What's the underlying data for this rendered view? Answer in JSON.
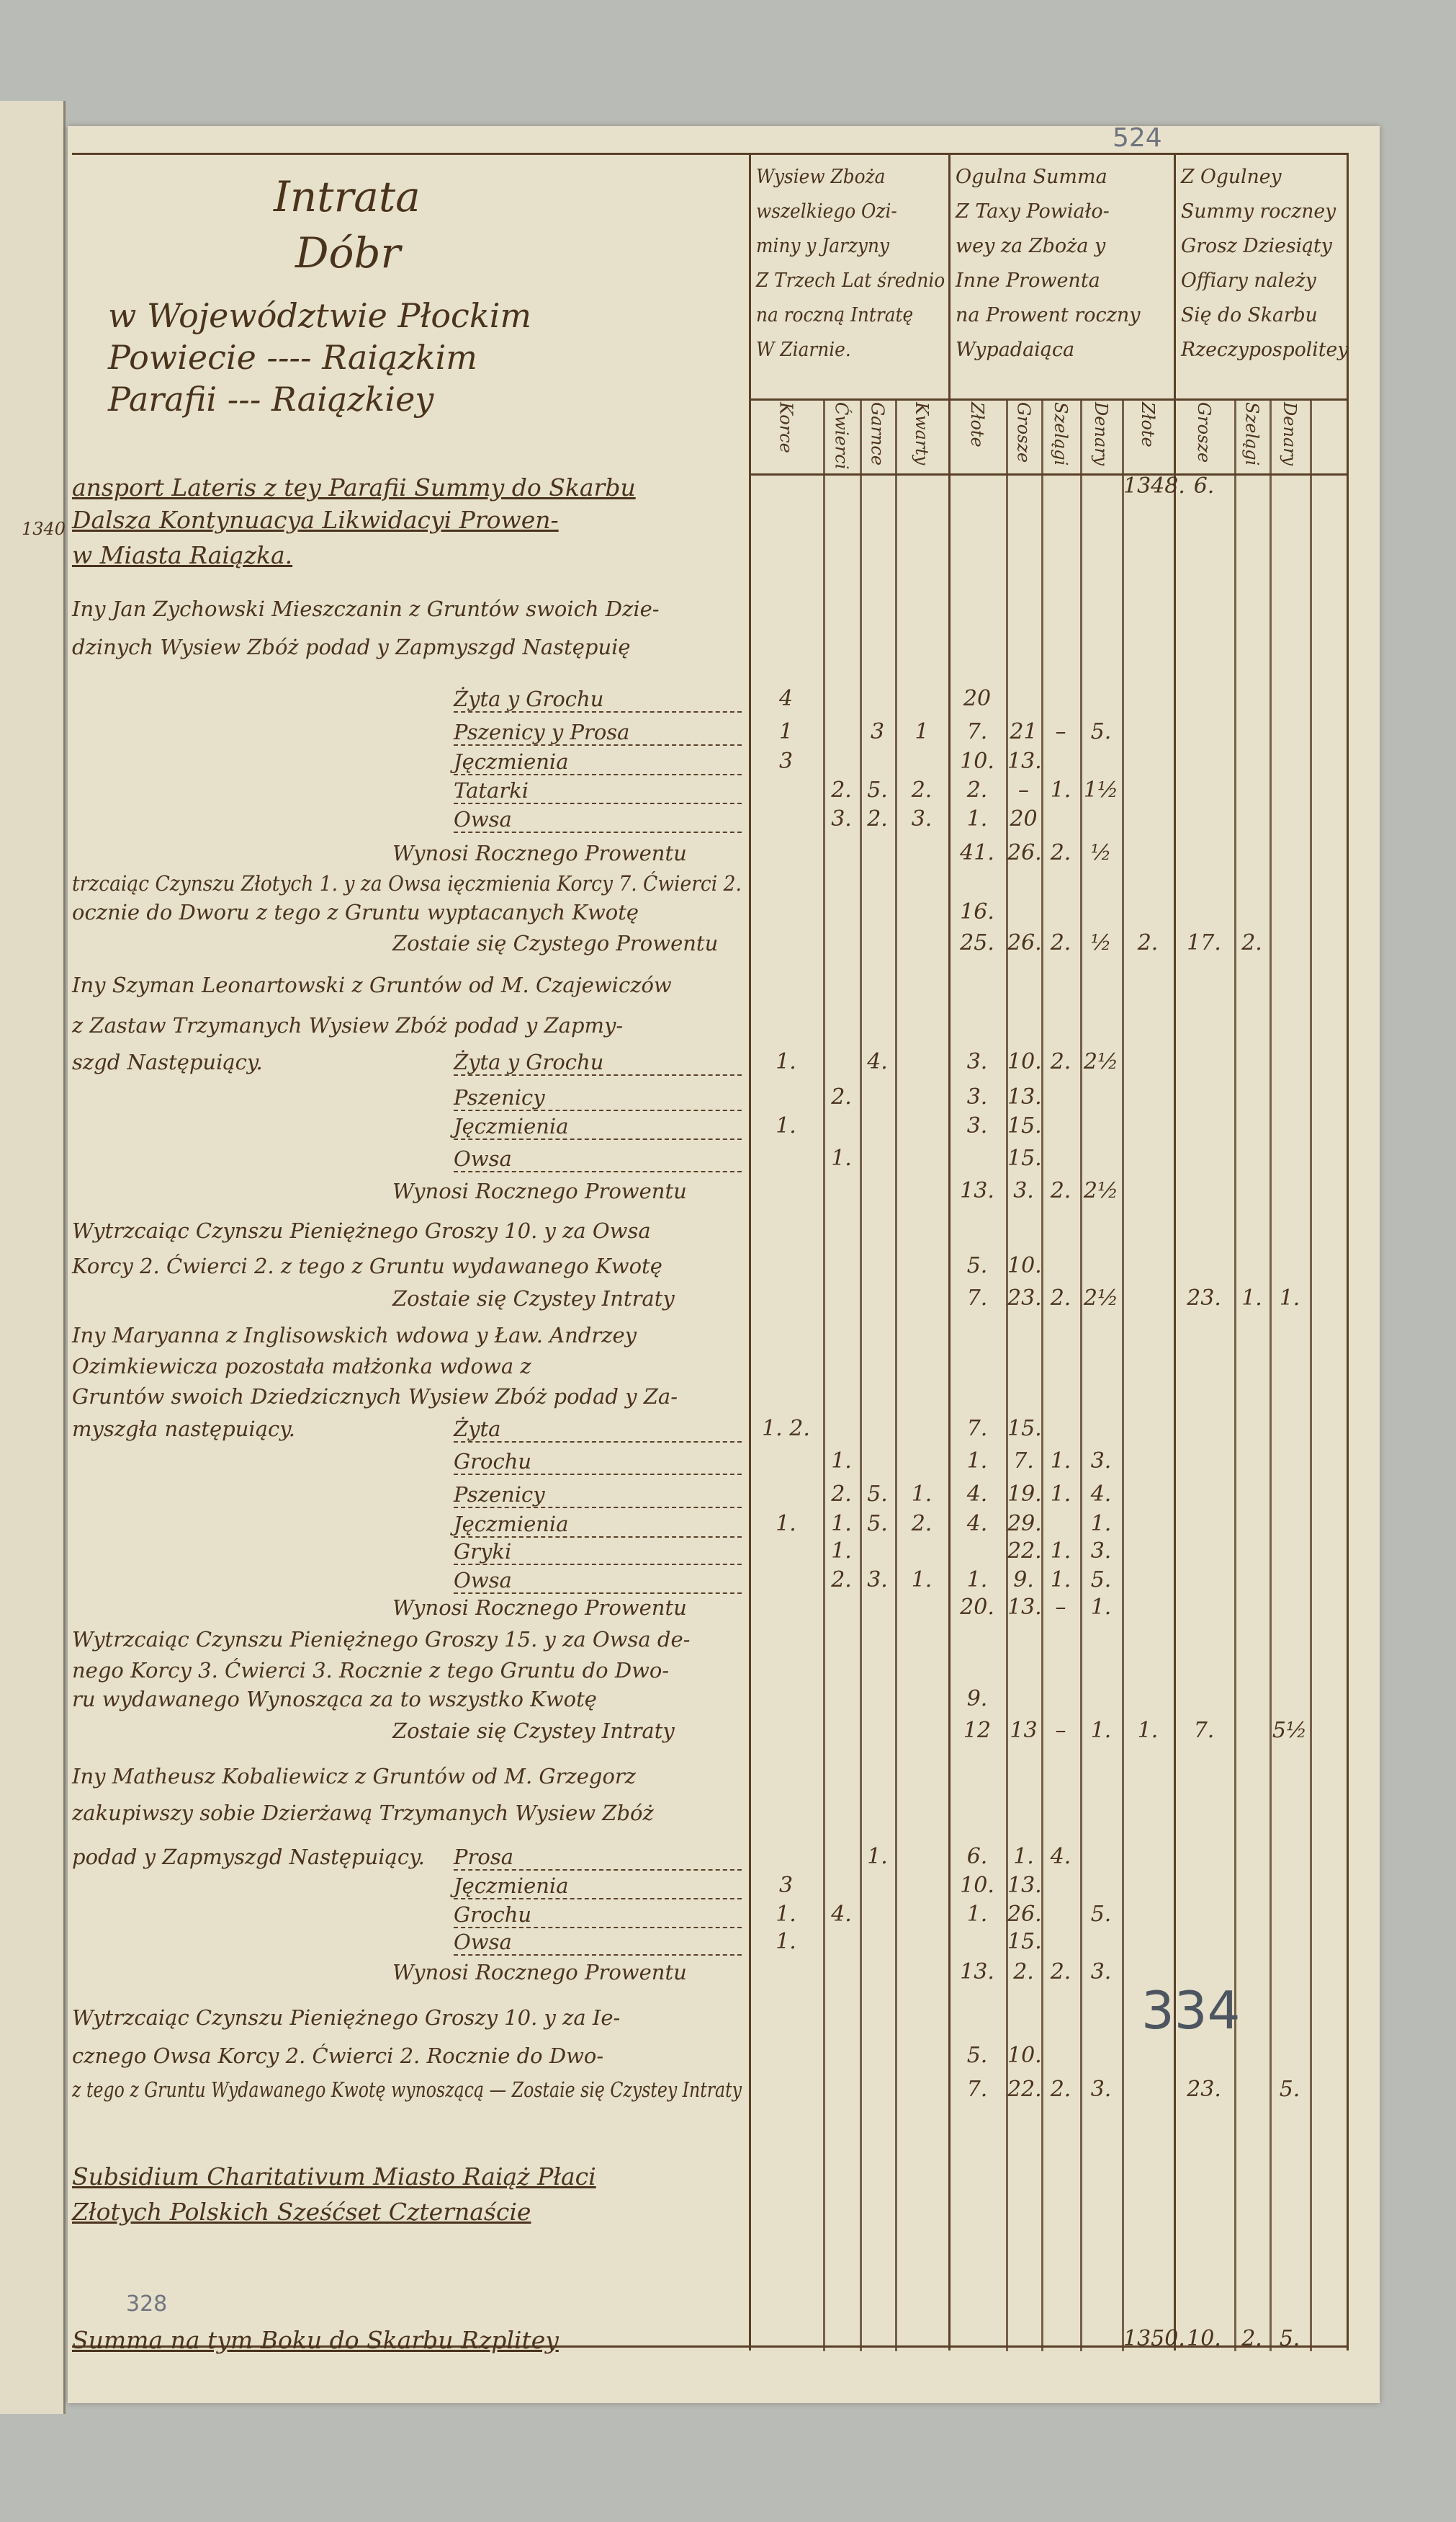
{
  "left_page_fragment": {
    "figure": "1340"
  },
  "pencil_notes": {
    "top_folio": "524",
    "stamp_folio": "334",
    "bottom_folio": "328"
  },
  "title": {
    "line1": "Intrata",
    "line2": "Dóbr",
    "line3": "w Województwie Płockim",
    "line4": "Powiecie ---- Raiązkim",
    "line5": "Parafii --- Raiązkiey"
  },
  "column_groups": [
    "Wysiew Zboża\nwszelkiego Ozi-\nminy y Jarzyny\nZ Trzech Lat średnio\nna roczną Intratę\nW Ziarnie.",
    "Ogulna Summa\nZ Taxy Powiało-\nwey za Zboża y\nInne Prowenta\nna Prowent roczny\nWypadaiąca",
    "Z Ogulney\nSummy roczney\nGrosz Dziesiąty\nOffiary należy\nSię do Skarbu\nRzeczypospolitey"
  ],
  "sub_columns": [
    "Korce",
    "Ćwierci",
    "Garnce",
    "Kwarty",
    "Złote",
    "Grosze",
    "Szelągi",
    "Denary",
    "Złote",
    "Grosze",
    "Szelągi",
    "Denary"
  ],
  "lines": [
    {
      "kind": "heading",
      "text": "ansport Lateris z tey Parafii Summy do Skarbu",
      "cells": [
        "",
        "",
        "",
        "",
        "",
        "",
        "",
        "",
        "1348.",
        "6.",
        "",
        ""
      ]
    },
    {
      "kind": "heading",
      "text": "Dalsza Kontynuacya Likwidacyi Prowen-",
      "cells": []
    },
    {
      "kind": "heading",
      "text": "w Miasta Raiązka.",
      "cells": []
    },
    {
      "kind": "text",
      "text": "Iny Jan Zychowski Mieszczanin z Gruntów swoich Dzie-",
      "cells": []
    },
    {
      "kind": "text",
      "text": "dzinych Wysiew Zbóż podad y Zapmyszgd Następuię",
      "cells": []
    },
    {
      "kind": "grain",
      "text": "Żyta y Grochu",
      "cells": [
        "4",
        "",
        "",
        "",
        "20",
        "",
        "",
        "",
        "",
        "",
        "",
        ""
      ]
    },
    {
      "kind": "grain",
      "text": "Pszenicy y Prosa",
      "cells": [
        "1",
        "",
        "3",
        "1",
        "7.",
        "21",
        "–",
        "5.",
        "",
        "",
        "",
        ""
      ]
    },
    {
      "kind": "grain",
      "text": "Jęczmienia",
      "cells": [
        "3",
        "",
        "",
        "",
        "10.",
        "13.",
        "",
        "",
        "",
        "",
        "",
        ""
      ]
    },
    {
      "kind": "grain",
      "text": "Tatarki",
      "cells": [
        "",
        "2.",
        "5.",
        "2.",
        "2.",
        "–",
        "1.",
        "1½",
        "",
        "",
        "",
        ""
      ]
    },
    {
      "kind": "grain",
      "text": "Owsa",
      "cells": [
        "",
        "3.",
        "2.",
        "3.",
        "1.",
        "20",
        "",
        "",
        "",
        "",
        "",
        ""
      ]
    },
    {
      "kind": "total",
      "text": "Wynosi Rocznego Prowentu",
      "cells": [
        "",
        "",
        "",
        "",
        "41.",
        "26.",
        "2.",
        "½",
        "",
        "",
        "",
        ""
      ]
    },
    {
      "kind": "text",
      "text": "trzcaiąc Czynszu Złotych 1. y za Owsa ięczmienia Korcy 7. Ćwierci 2.",
      "cells": []
    },
    {
      "kind": "text",
      "text": "ocznie do Dworu z tego z Gruntu wyptacanych Kwotę",
      "cells": [
        "",
        "",
        "",
        "",
        "16.",
        "",
        "",
        "",
        "",
        "",
        "",
        ""
      ]
    },
    {
      "kind": "total",
      "text": "Zostaie się Czystego Prowentu",
      "cells": [
        "",
        "",
        "",
        "",
        "25.",
        "26.",
        "2.",
        "½",
        "2.",
        "17.",
        "2.",
        ""
      ]
    },
    {
      "kind": "text",
      "text": "Iny Szyman Leonartowski z Gruntów od M. Czajewiczów",
      "cells": []
    },
    {
      "kind": "text",
      "text": "z Zastaw Trzymanych Wysiew Zbóż podad y Zapmy-",
      "cells": []
    },
    {
      "kind": "grain",
      "text": "Żyta y Grochu",
      "prefix": "szgd Następuiący.",
      "cells": [
        "1.",
        "",
        "4.",
        "",
        "3.",
        "10.",
        "2.",
        "2½",
        "",
        "",
        "",
        ""
      ]
    },
    {
      "kind": "grain",
      "text": "Pszenicy",
      "cells": [
        "",
        "2.",
        "",
        "",
        "3.",
        "13.",
        "",
        "",
        "",
        "",
        "",
        ""
      ]
    },
    {
      "kind": "grain",
      "text": "Jęczmienia",
      "cells": [
        "1.",
        "",
        "",
        "",
        "3.",
        "15.",
        "",
        "",
        "",
        "",
        "",
        ""
      ]
    },
    {
      "kind": "grain",
      "text": "Owsa",
      "cells": [
        "",
        "1.",
        "",
        "",
        "",
        "15.",
        "",
        "",
        "",
        "",
        "",
        ""
      ]
    },
    {
      "kind": "total",
      "text": "Wynosi Rocznego Prowentu",
      "cells": [
        "",
        "",
        "",
        "",
        "13.",
        "3.",
        "2.",
        "2½",
        "",
        "",
        "",
        ""
      ]
    },
    {
      "kind": "text",
      "text": "Wytrzcaiąc Czynszu Pieniężnego Groszy 10. y za Owsa",
      "cells": []
    },
    {
      "kind": "text",
      "text": "Korcy 2. Ćwierci 2. z tego z Gruntu wydawanego Kwotę",
      "cells": [
        "",
        "",
        "",
        "",
        "5.",
        "10.",
        "",
        "",
        "",
        "",
        "",
        ""
      ]
    },
    {
      "kind": "total",
      "text": "Zostaie się Czystey Intraty",
      "cells": [
        "",
        "",
        "",
        "",
        "7.",
        "23.",
        "2.",
        "2½",
        "",
        "23.",
        "1.",
        "1."
      ]
    },
    {
      "kind": "text",
      "text": "Iny Maryanna z Inglisowskich wdowa y Ław. Andrzey",
      "cells": []
    },
    {
      "kind": "text",
      "text": "Ozimkiewicza pozostała małżonka wdowa z",
      "cells": []
    },
    {
      "kind": "text",
      "text": "Gruntów swoich Dziedzicznych Wysiew Zbóż podad y Za-",
      "cells": []
    },
    {
      "kind": "grain",
      "text": "Żyta",
      "prefix": "myszgła następuiący.",
      "cells": [
        "1. 2.",
        "",
        "",
        "",
        "7.",
        "15.",
        "",
        "",
        "",
        "",
        "",
        ""
      ]
    },
    {
      "kind": "grain",
      "text": "Grochu",
      "cells": [
        "",
        "1.",
        "",
        "",
        "1.",
        "7.",
        "1.",
        "3.",
        "",
        "",
        "",
        ""
      ]
    },
    {
      "kind": "grain",
      "text": "Pszenicy",
      "cells": [
        "",
        "2.",
        "5.",
        "1.",
        "4.",
        "19.",
        "1.",
        "4.",
        "",
        "",
        "",
        ""
      ]
    },
    {
      "kind": "grain",
      "text": "Jęczmienia",
      "cells": [
        "1.",
        "1.",
        "5.",
        "2.",
        "4.",
        "29.",
        "",
        "1.",
        "",
        "",
        "",
        ""
      ]
    },
    {
      "kind": "grain",
      "text": "Gryki",
      "cells": [
        "",
        "1.",
        "",
        "",
        "",
        "22.",
        "1.",
        "3.",
        "",
        "",
        "",
        ""
      ]
    },
    {
      "kind": "grain",
      "text": "Owsa",
      "cells": [
        "",
        "2.",
        "3.",
        "1.",
        "1.",
        "9.",
        "1.",
        "5.",
        "",
        "",
        "",
        ""
      ]
    },
    {
      "kind": "total",
      "text": "Wynosi Rocznego Prowentu",
      "cells": [
        "",
        "",
        "",
        "",
        "20.",
        "13.",
        "–",
        "1.",
        "",
        "",
        "",
        ""
      ]
    },
    {
      "kind": "text",
      "text": "Wytrzcaiąc Czynszu Pieniężnego Groszy 15. y za Owsa de-",
      "cells": []
    },
    {
      "kind": "text",
      "text": "nego Korcy 3. Ćwierci 3. Rocznie z tego Gruntu do Dwo-",
      "cells": []
    },
    {
      "kind": "text",
      "text": "ru wydawanego Wynosząca za to wszystko Kwotę",
      "cells": [
        "",
        "",
        "",
        "",
        "9.",
        "",
        "",
        "",
        "",
        "",
        "",
        ""
      ]
    },
    {
      "kind": "total",
      "text": "Zostaie się Czystey Intraty",
      "cells": [
        "",
        "",
        "",
        "",
        "12",
        "13",
        "–",
        "1.",
        "1.",
        "7.",
        "",
        "5½"
      ]
    },
    {
      "kind": "text",
      "text": "Iny Matheusz Kobaliewicz z Gruntów od M. Grzegorz",
      "cells": []
    },
    {
      "kind": "text",
      "text": "zakupiwszy sobie Dzierżawą Trzymanych Wysiew Zbóż",
      "cells": []
    },
    {
      "kind": "grain",
      "text": "Prosa",
      "prefix": "podad y Zapmyszgd Następuiący.",
      "cells": [
        "",
        "",
        "1.",
        "",
        "6.",
        "1.",
        "4.",
        "",
        "",
        "",
        "",
        ""
      ]
    },
    {
      "kind": "grain",
      "text": "Jęczmienia",
      "cells": [
        "3",
        "",
        "",
        "",
        "10.",
        "13.",
        "",
        "",
        "",
        "",
        "",
        ""
      ]
    },
    {
      "kind": "grain",
      "text": "Grochu",
      "cells": [
        "1.",
        "4.",
        "",
        "",
        "1.",
        "26.",
        "",
        "5.",
        "",
        "",
        "",
        ""
      ]
    },
    {
      "kind": "grain",
      "text": "Owsa",
      "cells": [
        "1.",
        "",
        "",
        "",
        "",
        "15.",
        "",
        "",
        "",
        "",
        "",
        ""
      ]
    },
    {
      "kind": "total",
      "text": "Wynosi Rocznego Prowentu",
      "cells": [
        "",
        "",
        "",
        "",
        "13.",
        "2.",
        "2.",
        "3.",
        "",
        "",
        "",
        ""
      ]
    },
    {
      "kind": "text",
      "text": "Wytrzcaiąc Czynszu Pieniężnego Groszy 10. y za Ie-",
      "cells": []
    },
    {
      "kind": "text",
      "text": "cznego Owsa Korcy 2. Ćwierci 2. Rocznie do Dwo-",
      "cells": [
        "",
        "",
        "",
        "",
        "5.",
        "10.",
        "",
        "",
        "",
        "",
        "",
        ""
      ]
    },
    {
      "kind": "total",
      "text": "z tego z Gruntu Wydawanego Kwotę wynoszącą — Zostaie się Czystey Intraty",
      "cells": [
        "",
        "",
        "",
        "",
        "7.",
        "22.",
        "2.",
        "3.",
        "",
        "23.",
        "",
        "5."
      ]
    },
    {
      "kind": "heading",
      "text": "Subsidium Charitativum Miasto Raiąż Płaci",
      "cells": []
    },
    {
      "kind": "heading",
      "text": "Złotych Polskich Sześćset Czternaście",
      "cells": []
    },
    {
      "kind": "heading",
      "text": "Summa na tym Boku do Skarbu Rzplitey",
      "cells": [
        "",
        "",
        "",
        "",
        "",
        "",
        "",
        "",
        "1350.",
        "10.",
        "2.",
        "5."
      ]
    }
  ]
}
